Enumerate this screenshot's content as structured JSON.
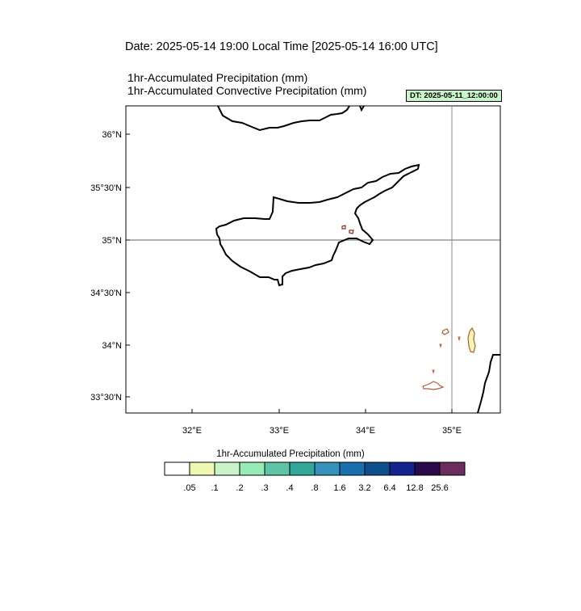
{
  "header": {
    "date_line": "Date: 2025-05-14  19:00 Local Time [2025-05-14  16:00 UTC]",
    "subtitle_1": "1hr-Accumulated Precipitation   (mm)",
    "subtitle_2": "1hr-Accumulated Convective Precipitation   (mm)",
    "dt_label": "DT: 2025-05-11_12:00:00",
    "dt_box_color": "#c8f5c8"
  },
  "map": {
    "lat_ticks": [
      "36°N",
      "35°30'N",
      "35°N",
      "34°30'N",
      "34°N",
      "33°30'N"
    ],
    "lon_ticks": [
      "32°E",
      "33°E",
      "34°E",
      "35°E"
    ],
    "reference_lines": {
      "latitude": "35°N",
      "longitude": "35°E"
    }
  },
  "colorbar": {
    "title": "1hr-Accumulated Precipitation  (mm)",
    "colors": [
      "#ffffff",
      "#edf8b1",
      "#c7f3c7",
      "#97ebb4",
      "#5ec4a8",
      "#32a89a",
      "#3492bb",
      "#1a6fae",
      "#0d4f8c",
      "#13228f",
      "#2a0a4a",
      "#6a2d5e"
    ],
    "labels": [
      ".05",
      ".1",
      ".2",
      ".3",
      ".4",
      ".8",
      "1.6",
      "3.2",
      "6.4",
      "12.8",
      "25.6"
    ]
  }
}
